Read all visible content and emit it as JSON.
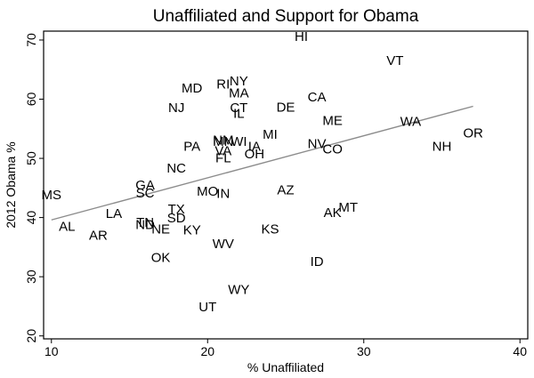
{
  "chart_data": {
    "type": "scatter",
    "title": "Unaffiliated and Support for Obama",
    "xlabel": "% Unaffiliated",
    "ylabel": "2012 Obama %",
    "xlim": [
      9.5,
      40.5
    ],
    "ylim": [
      19.5,
      71.5
    ],
    "xticks": [
      "10",
      "20",
      "30",
      "40"
    ],
    "yticks": [
      "20",
      "30",
      "40",
      "50",
      "60",
      "70"
    ],
    "grid": false,
    "colors": {
      "marker_text": "#000000",
      "fit_line": "#8c8c8c"
    },
    "fit_line": {
      "x": [
        10,
        37
      ],
      "y": [
        39.6,
        58.8
      ]
    },
    "points": [
      {
        "label": "HI",
        "x": 26.0,
        "y": 70.5
      },
      {
        "label": "VT",
        "x": 32.0,
        "y": 66.5
      },
      {
        "label": "NY",
        "x": 22.0,
        "y": 63.0
      },
      {
        "label": "RI",
        "x": 21.0,
        "y": 62.5
      },
      {
        "label": "MD",
        "x": 19.0,
        "y": 61.8
      },
      {
        "label": "MA",
        "x": 22.0,
        "y": 61.0
      },
      {
        "label": "CA",
        "x": 27.0,
        "y": 60.3
      },
      {
        "label": "NJ",
        "x": 18.0,
        "y": 58.5
      },
      {
        "label": "CT",
        "x": 22.0,
        "y": 58.5
      },
      {
        "label": "DE",
        "x": 25.0,
        "y": 58.6
      },
      {
        "label": "IL",
        "x": 22.0,
        "y": 57.5
      },
      {
        "label": "ME",
        "x": 28.0,
        "y": 56.3
      },
      {
        "label": "WA",
        "x": 33.0,
        "y": 56.2
      },
      {
        "label": "OR",
        "x": 37.0,
        "y": 54.2
      },
      {
        "label": "MI",
        "x": 24.0,
        "y": 54.0
      },
      {
        "label": "NM",
        "x": 21.0,
        "y": 53.0
      },
      {
        "label": "MN",
        "x": 21.0,
        "y": 52.8
      },
      {
        "label": "WI",
        "x": 22.0,
        "y": 52.8
      },
      {
        "label": "NV",
        "x": 27.0,
        "y": 52.4
      },
      {
        "label": "NH",
        "x": 35.0,
        "y": 52.0
      },
      {
        "label": "PA",
        "x": 19.0,
        "y": 52.0
      },
      {
        "label": "IA",
        "x": 23.0,
        "y": 52.0
      },
      {
        "label": "CO",
        "x": 28.0,
        "y": 51.5
      },
      {
        "label": "VA",
        "x": 21.0,
        "y": 51.2
      },
      {
        "label": "OH",
        "x": 23.0,
        "y": 50.7
      },
      {
        "label": "FL",
        "x": 21.0,
        "y": 50.0
      },
      {
        "label": "NC",
        "x": 18.0,
        "y": 48.3
      },
      {
        "label": "GA",
        "x": 16.0,
        "y": 45.4
      },
      {
        "label": "SC",
        "x": 16.0,
        "y": 44.1
      },
      {
        "label": "MO",
        "x": 20.0,
        "y": 44.4
      },
      {
        "label": "AZ",
        "x": 25.0,
        "y": 44.6
      },
      {
        "label": "IN",
        "x": 21.0,
        "y": 44.0
      },
      {
        "label": "MS",
        "x": 10.0,
        "y": 43.8
      },
      {
        "label": "TX",
        "x": 18.0,
        "y": 41.4
      },
      {
        "label": "MT",
        "x": 29.0,
        "y": 41.7
      },
      {
        "label": "AK",
        "x": 28.0,
        "y": 40.8
      },
      {
        "label": "LA",
        "x": 14.0,
        "y": 40.6
      },
      {
        "label": "SD",
        "x": 18.0,
        "y": 39.9
      },
      {
        "label": "TN",
        "x": 16.0,
        "y": 39.1
      },
      {
        "label": "ND",
        "x": 16.0,
        "y": 38.7
      },
      {
        "label": "AL",
        "x": 11.0,
        "y": 38.4
      },
      {
        "label": "NE",
        "x": 17.0,
        "y": 38.0
      },
      {
        "label": "KY",
        "x": 19.0,
        "y": 37.8
      },
      {
        "label": "KS",
        "x": 24.0,
        "y": 38.0
      },
      {
        "label": "AR",
        "x": 13.0,
        "y": 36.9
      },
      {
        "label": "WV",
        "x": 21.0,
        "y": 35.5
      },
      {
        "label": "OK",
        "x": 17.0,
        "y": 33.2
      },
      {
        "label": "ID",
        "x": 27.0,
        "y": 32.5
      },
      {
        "label": "WY",
        "x": 22.0,
        "y": 27.8
      },
      {
        "label": "UT",
        "x": 20.0,
        "y": 24.8
      }
    ]
  }
}
